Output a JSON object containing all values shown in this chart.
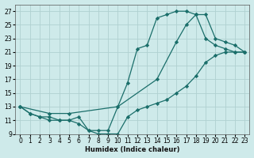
{
  "xlabel": "Humidex (Indice chaleur)",
  "bg_color": "#ceeaea",
  "grid_color": "#b0d0d0",
  "line_color": "#1a6e6a",
  "xlim": [
    -0.5,
    23.5
  ],
  "ylim": [
    9,
    28
  ],
  "xticks": [
    0,
    1,
    2,
    3,
    4,
    5,
    6,
    7,
    8,
    9,
    10,
    11,
    12,
    13,
    14,
    15,
    16,
    17,
    18,
    19,
    20,
    21,
    22,
    23
  ],
  "yticks": [
    9,
    11,
    13,
    15,
    17,
    19,
    21,
    23,
    25,
    27
  ],
  "series1_x": [
    0,
    1,
    2,
    3,
    4,
    5,
    6,
    7,
    8,
    9,
    10,
    11,
    12,
    13,
    14,
    15,
    16,
    17,
    18,
    19,
    20,
    21,
    22,
    23
  ],
  "series1_y": [
    13,
    12,
    11.5,
    11,
    11,
    11,
    10.5,
    9.5,
    9.5,
    9.5,
    13,
    16.5,
    21.5,
    22,
    26,
    26.5,
    27,
    27,
    26.5,
    23,
    22,
    21.5,
    21,
    21
  ],
  "series2_x": [
    0,
    1,
    2,
    3,
    4,
    5,
    6,
    7,
    8,
    9,
    10,
    11,
    12,
    13,
    14,
    15,
    16,
    17,
    18,
    19,
    20,
    21,
    22,
    23
  ],
  "series2_y": [
    13,
    12,
    11.5,
    11.5,
    11,
    11,
    11.5,
    9.5,
    9,
    9,
    9,
    11.5,
    12.5,
    13,
    13.5,
    14,
    15,
    16,
    17.5,
    19.5,
    20.5,
    21,
    21,
    21
  ],
  "series3_x": [
    0,
    3,
    5,
    10,
    14,
    16,
    17,
    18,
    19,
    20,
    21,
    22,
    23
  ],
  "series3_y": [
    13,
    12,
    12,
    13,
    17,
    22.5,
    25,
    26.5,
    26.5,
    23,
    22.5,
    22,
    21
  ]
}
